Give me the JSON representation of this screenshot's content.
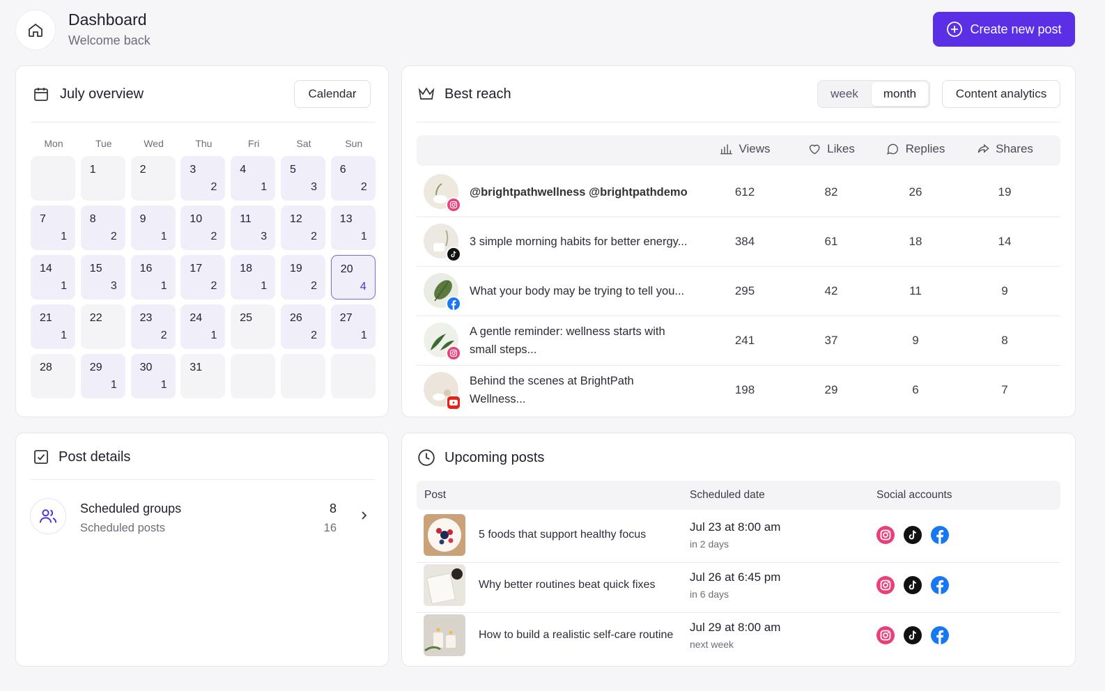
{
  "header": {
    "title": "Dashboard",
    "subtitle": "Welcome back",
    "button": "Create new post"
  },
  "calendar": {
    "title": "July overview",
    "button": "Calendar",
    "weekdays": [
      "Mon",
      "Tue",
      "Wed",
      "Thu",
      "Fri",
      "Sat",
      "Sun"
    ],
    "cells": [
      null,
      {
        "day": 1
      },
      {
        "day": 2
      },
      {
        "day": 3,
        "count": 2
      },
      {
        "day": 4,
        "count": 1
      },
      {
        "day": 5,
        "count": 3
      },
      {
        "day": 6,
        "count": 2
      },
      {
        "day": 7,
        "count": 1
      },
      {
        "day": 8,
        "count": 2
      },
      {
        "day": 9,
        "count": 1
      },
      {
        "day": 10,
        "count": 2
      },
      {
        "day": 11,
        "count": 3
      },
      {
        "day": 12,
        "count": 2
      },
      {
        "day": 13,
        "count": 1
      },
      {
        "day": 14,
        "count": 1
      },
      {
        "day": 15,
        "count": 3
      },
      {
        "day": 16,
        "count": 1
      },
      {
        "day": 17,
        "count": 2
      },
      {
        "day": 18,
        "count": 1
      },
      {
        "day": 19,
        "count": 2
      },
      {
        "day": 20,
        "count": 4,
        "selected": true
      },
      {
        "day": 21,
        "count": 1
      },
      {
        "day": 22
      },
      {
        "day": 23,
        "count": 2
      },
      {
        "day": 24,
        "count": 1
      },
      {
        "day": 25
      },
      {
        "day": 26,
        "count": 2
      },
      {
        "day": 27,
        "count": 1
      },
      {
        "day": 28
      },
      {
        "day": 29,
        "count": 1
      },
      {
        "day": 30,
        "count": 1
      },
      {
        "day": 31
      },
      null,
      null,
      null
    ]
  },
  "reach": {
    "title": "Best reach",
    "periods": [
      "week",
      "month"
    ],
    "active_period": "month",
    "button": "Content analytics",
    "columns": [
      "Views",
      "Likes",
      "Replies",
      "Shares"
    ],
    "rows": [
      {
        "post": "@brightpathwellness @brightpathdemo",
        "platform": "instagram",
        "values": [
          612,
          82,
          26,
          19
        ]
      },
      {
        "post": "3 simple morning habits for better energy...",
        "platform": "tiktok",
        "values": [
          384,
          61,
          18,
          14
        ]
      },
      {
        "post": "What your body may be trying to tell you...",
        "platform": "facebook",
        "values": [
          295,
          42,
          11,
          9
        ]
      },
      {
        "post": "A gentle reminder: wellness starts with small steps...",
        "platform": "instagram",
        "values": [
          241,
          37,
          9,
          8
        ]
      },
      {
        "post": "Behind the scenes at BrightPath Wellness...",
        "platform": "youtube",
        "values": [
          198,
          29,
          6,
          7
        ]
      }
    ]
  },
  "post_details": {
    "title": "Post details",
    "item": {
      "title": "Scheduled groups",
      "subtitle": "Scheduled posts",
      "count": 8,
      "subcount": 16
    }
  },
  "upcoming": {
    "title": "Upcoming posts",
    "columns": [
      "Post",
      "Scheduled date",
      "Social accounts"
    ],
    "rows": [
      {
        "post": "5 foods that support healthy focus",
        "date": "Jul 23 at 8:00 am",
        "relative": "in 2 days",
        "accounts": [
          "instagram",
          "tiktok",
          "facebook"
        ]
      },
      {
        "post": "Why better routines beat quick fixes",
        "date": "Jul 26 at 6:45 pm",
        "relative": "in 6 days",
        "accounts": [
          "instagram",
          "tiktok",
          "facebook"
        ]
      },
      {
        "post": "How to build a realistic self-care routine",
        "date": "Jul 29 at 8:00 am",
        "relative": "next week",
        "accounts": [
          "instagram",
          "tiktok",
          "facebook"
        ]
      }
    ]
  }
}
